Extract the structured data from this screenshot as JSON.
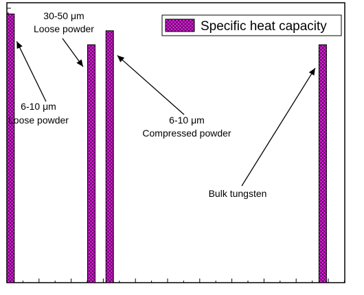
{
  "chart_data": {
    "type": "bar",
    "title": "",
    "xlabel": "",
    "ylabel": "",
    "ylim": [
      0,
      1
    ],
    "grid": false,
    "legend_position": "top-right",
    "series": [
      {
        "name": "Specific heat capacity",
        "color": "#e020e0",
        "hatch": "crosshatch",
        "bars": [
          {
            "x": 0.05,
            "value": 0.96
          },
          {
            "x": 1.15,
            "value": 0.85
          },
          {
            "x": 1.4,
            "value": 0.9
          },
          {
            "x": 4.3,
            "value": 0.85
          }
        ]
      }
    ],
    "xlim": [
      0,
      4.6
    ],
    "annotations": [
      {
        "lines": [
          "6-10 μm",
          "Loose powder"
        ],
        "bar_index": 0
      },
      {
        "lines": [
          "30-50 μm",
          "Loose powder"
        ],
        "bar_index": 1
      },
      {
        "lines": [
          "6-10 μm",
          "Compressed powder"
        ],
        "bar_index": 2
      },
      {
        "lines": [
          "Bulk tungsten"
        ],
        "bar_index": 3
      }
    ]
  }
}
